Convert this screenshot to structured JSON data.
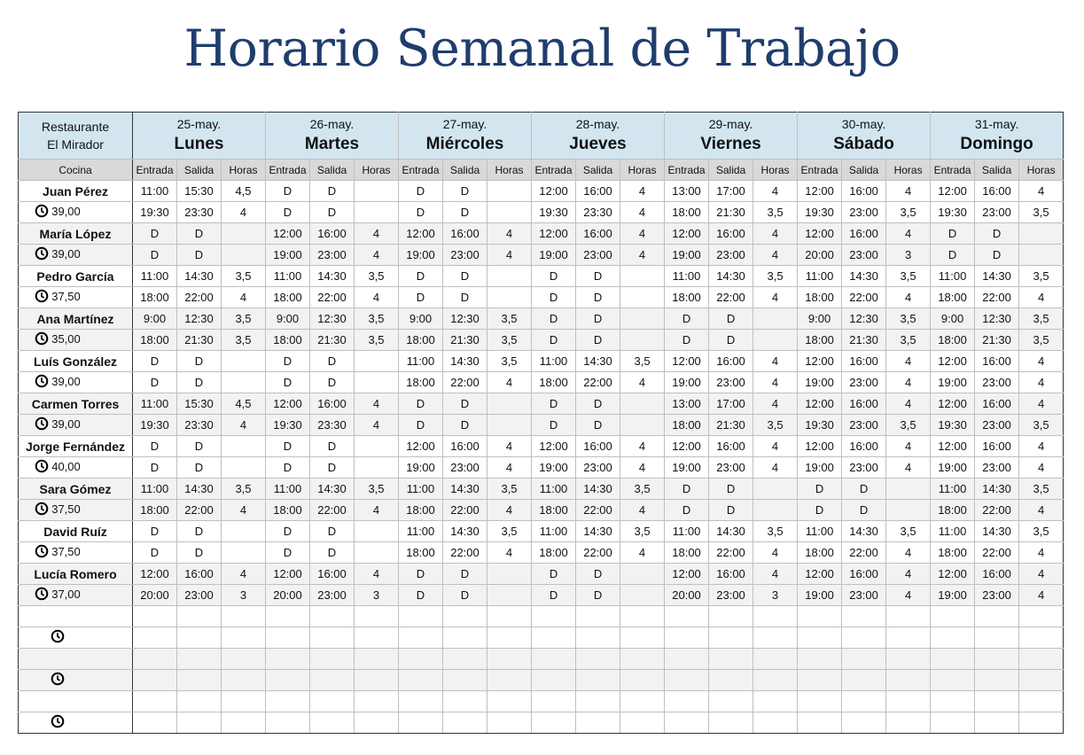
{
  "header": {
    "title": "Horario Semanal de Trabajo"
  },
  "table": {
    "restaurant": [
      "Restaurante",
      "El Mirador"
    ],
    "department": "Cocina",
    "subheaders": [
      "Entrada",
      "Salida",
      "Horas"
    ],
    "days": [
      {
        "date": "25-may.",
        "name": "Lunes"
      },
      {
        "date": "26-may.",
        "name": "Martes"
      },
      {
        "date": "27-may.",
        "name": "Miércoles"
      },
      {
        "date": "28-may.",
        "name": "Jueves"
      },
      {
        "date": "29-may.",
        "name": "Viernes"
      },
      {
        "date": "30-may.",
        "name": "Sábado"
      },
      {
        "date": "31-may.",
        "name": "Domingo"
      }
    ],
    "employees": [
      {
        "name": "Juan Pérez",
        "rate": "39,00",
        "days": [
          [
            [
              "11:00",
              "15:30",
              "4,5"
            ],
            [
              "19:30",
              "23:30",
              "4"
            ]
          ],
          [
            [
              "D",
              "D"
            ],
            [
              "D",
              "D"
            ]
          ],
          [
            [
              "D",
              "D"
            ],
            [
              "D",
              "D"
            ]
          ],
          [
            [
              "12:00",
              "16:00",
              "4"
            ],
            [
              "19:30",
              "23:30",
              "4"
            ]
          ],
          [
            [
              "13:00",
              "17:00",
              "4"
            ],
            [
              "18:00",
              "21:30",
              "3,5"
            ]
          ],
          [
            [
              "12:00",
              "16:00",
              "4"
            ],
            [
              "19:30",
              "23:00",
              "3,5"
            ]
          ],
          [
            [
              "12:00",
              "16:00",
              "4"
            ],
            [
              "19:30",
              "23:00",
              "3,5"
            ]
          ]
        ]
      },
      {
        "name": "María López",
        "rate": "39,00",
        "days": [
          [
            [
              "D",
              "D"
            ],
            [
              "D",
              "D"
            ]
          ],
          [
            [
              "12:00",
              "16:00",
              "4"
            ],
            [
              "19:00",
              "23:00",
              "4"
            ]
          ],
          [
            [
              "12:00",
              "16:00",
              "4"
            ],
            [
              "19:00",
              "23:00",
              "4"
            ]
          ],
          [
            [
              "12:00",
              "16:00",
              "4"
            ],
            [
              "19:00",
              "23:00",
              "4"
            ]
          ],
          [
            [
              "12:00",
              "16:00",
              "4"
            ],
            [
              "19:00",
              "23:00",
              "4"
            ]
          ],
          [
            [
              "12:00",
              "16:00",
              "4"
            ],
            [
              "20:00",
              "23:00",
              "3"
            ]
          ],
          [
            [
              "D",
              "D"
            ],
            [
              "D",
              "D"
            ]
          ]
        ]
      },
      {
        "name": "Pedro García",
        "rate": "37,50",
        "days": [
          [
            [
              "11:00",
              "14:30",
              "3,5"
            ],
            [
              "18:00",
              "22:00",
              "4"
            ]
          ],
          [
            [
              "11:00",
              "14:30",
              "3,5"
            ],
            [
              "18:00",
              "22:00",
              "4"
            ]
          ],
          [
            [
              "D",
              "D"
            ],
            [
              "D",
              "D"
            ]
          ],
          [
            [
              "D",
              "D"
            ],
            [
              "D",
              "D"
            ]
          ],
          [
            [
              "11:00",
              "14:30",
              "3,5"
            ],
            [
              "18:00",
              "22:00",
              "4"
            ]
          ],
          [
            [
              "11:00",
              "14:30",
              "3,5"
            ],
            [
              "18:00",
              "22:00",
              "4"
            ]
          ],
          [
            [
              "11:00",
              "14:30",
              "3,5"
            ],
            [
              "18:00",
              "22:00",
              "4"
            ]
          ]
        ]
      },
      {
        "name": "Ana Martínez",
        "rate": "35,00",
        "days": [
          [
            [
              "9:00",
              "12:30",
              "3,5"
            ],
            [
              "18:00",
              "21:30",
              "3,5"
            ]
          ],
          [
            [
              "9:00",
              "12:30",
              "3,5"
            ],
            [
              "18:00",
              "21:30",
              "3,5"
            ]
          ],
          [
            [
              "9:00",
              "12:30",
              "3,5"
            ],
            [
              "18:00",
              "21:30",
              "3,5"
            ]
          ],
          [
            [
              "D",
              "D"
            ],
            [
              "D",
              "D"
            ]
          ],
          [
            [
              "D",
              "D"
            ],
            [
              "D",
              "D"
            ]
          ],
          [
            [
              "9:00",
              "12:30",
              "3,5"
            ],
            [
              "18:00",
              "21:30",
              "3,5"
            ]
          ],
          [
            [
              "9:00",
              "12:30",
              "3,5"
            ],
            [
              "18:00",
              "21:30",
              "3,5"
            ]
          ]
        ]
      },
      {
        "name": "Luís González",
        "rate": "39,00",
        "days": [
          [
            [
              "D",
              "D"
            ],
            [
              "D",
              "D"
            ]
          ],
          [
            [
              "D",
              "D"
            ],
            [
              "D",
              "D"
            ]
          ],
          [
            [
              "11:00",
              "14:30",
              "3,5"
            ],
            [
              "18:00",
              "22:00",
              "4"
            ]
          ],
          [
            [
              "11:00",
              "14:30",
              "3,5"
            ],
            [
              "18:00",
              "22:00",
              "4"
            ]
          ],
          [
            [
              "12:00",
              "16:00",
              "4"
            ],
            [
              "19:00",
              "23:00",
              "4"
            ]
          ],
          [
            [
              "12:00",
              "16:00",
              "4"
            ],
            [
              "19:00",
              "23:00",
              "4"
            ]
          ],
          [
            [
              "12:00",
              "16:00",
              "4"
            ],
            [
              "19:00",
              "23:00",
              "4"
            ]
          ]
        ]
      },
      {
        "name": "Carmen Torres",
        "rate": "39,00",
        "days": [
          [
            [
              "11:00",
              "15:30",
              "4,5"
            ],
            [
              "19:30",
              "23:30",
              "4"
            ]
          ],
          [
            [
              "12:00",
              "16:00",
              "4"
            ],
            [
              "19:30",
              "23:30",
              "4"
            ]
          ],
          [
            [
              "D",
              "D"
            ],
            [
              "D",
              "D"
            ]
          ],
          [
            [
              "D",
              "D"
            ],
            [
              "D",
              "D"
            ]
          ],
          [
            [
              "13:00",
              "17:00",
              "4"
            ],
            [
              "18:00",
              "21:30",
              "3,5"
            ]
          ],
          [
            [
              "12:00",
              "16:00",
              "4"
            ],
            [
              "19:30",
              "23:00",
              "3,5"
            ]
          ],
          [
            [
              "12:00",
              "16:00",
              "4"
            ],
            [
              "19:30",
              "23:00",
              "3,5"
            ]
          ]
        ]
      },
      {
        "name": "Jorge Fernández",
        "rate": "40,00",
        "days": [
          [
            [
              "D",
              "D"
            ],
            [
              "D",
              "D"
            ]
          ],
          [
            [
              "D",
              "D"
            ],
            [
              "D",
              "D"
            ]
          ],
          [
            [
              "12:00",
              "16:00",
              "4"
            ],
            [
              "19:00",
              "23:00",
              "4"
            ]
          ],
          [
            [
              "12:00",
              "16:00",
              "4"
            ],
            [
              "19:00",
              "23:00",
              "4"
            ]
          ],
          [
            [
              "12:00",
              "16:00",
              "4"
            ],
            [
              "19:00",
              "23:00",
              "4"
            ]
          ],
          [
            [
              "12:00",
              "16:00",
              "4"
            ],
            [
              "19:00",
              "23:00",
              "4"
            ]
          ],
          [
            [
              "12:00",
              "16:00",
              "4"
            ],
            [
              "19:00",
              "23:00",
              "4"
            ]
          ]
        ]
      },
      {
        "name": "Sara Gómez",
        "rate": "37,50",
        "days": [
          [
            [
              "11:00",
              "14:30",
              "3,5"
            ],
            [
              "18:00",
              "22:00",
              "4"
            ]
          ],
          [
            [
              "11:00",
              "14:30",
              "3,5"
            ],
            [
              "18:00",
              "22:00",
              "4"
            ]
          ],
          [
            [
              "11:00",
              "14:30",
              "3,5"
            ],
            [
              "18:00",
              "22:00",
              "4"
            ]
          ],
          [
            [
              "11:00",
              "14:30",
              "3,5"
            ],
            [
              "18:00",
              "22:00",
              "4"
            ]
          ],
          [
            [
              "D",
              "D"
            ],
            [
              "D",
              "D"
            ]
          ],
          [
            [
              "D",
              "D"
            ],
            [
              "D",
              "D"
            ]
          ],
          [
            [
              "11:00",
              "14:30",
              "3,5"
            ],
            [
              "18:00",
              "22:00",
              "4"
            ]
          ]
        ]
      },
      {
        "name": "David Ruíz",
        "rate": "37,50",
        "days": [
          [
            [
              "D",
              "D"
            ],
            [
              "D",
              "D"
            ]
          ],
          [
            [
              "D",
              "D"
            ],
            [
              "D",
              "D"
            ]
          ],
          [
            [
              "11:00",
              "14:30",
              "3,5"
            ],
            [
              "18:00",
              "22:00",
              "4"
            ]
          ],
          [
            [
              "11:00",
              "14:30",
              "3,5"
            ],
            [
              "18:00",
              "22:00",
              "4"
            ]
          ],
          [
            [
              "11:00",
              "14:30",
              "3,5"
            ],
            [
              "18:00",
              "22:00",
              "4"
            ]
          ],
          [
            [
              "11:00",
              "14:30",
              "3,5"
            ],
            [
              "18:00",
              "22:00",
              "4"
            ]
          ],
          [
            [
              "11:00",
              "14:30",
              "3,5"
            ],
            [
              "18:00",
              "22:00",
              "4"
            ]
          ]
        ]
      },
      {
        "name": "Lucía Romero",
        "rate": "37,00",
        "days": [
          [
            [
              "12:00",
              "16:00",
              "4"
            ],
            [
              "20:00",
              "23:00",
              "3"
            ]
          ],
          [
            [
              "12:00",
              "16:00",
              "4"
            ],
            [
              "20:00",
              "23:00",
              "3"
            ]
          ],
          [
            [
              "D",
              "D"
            ],
            [
              "D",
              "D"
            ]
          ],
          [
            [
              "D",
              "D"
            ],
            [
              "D",
              "D"
            ]
          ],
          [
            [
              "12:00",
              "16:00",
              "4"
            ],
            [
              "20:00",
              "23:00",
              "3"
            ]
          ],
          [
            [
              "12:00",
              "16:00",
              "4"
            ],
            [
              "19:00",
              "23:00",
              "4"
            ]
          ],
          [
            [
              "12:00",
              "16:00",
              "4"
            ],
            [
              "19:00",
              "23:00",
              "4"
            ]
          ]
        ]
      }
    ]
  }
}
